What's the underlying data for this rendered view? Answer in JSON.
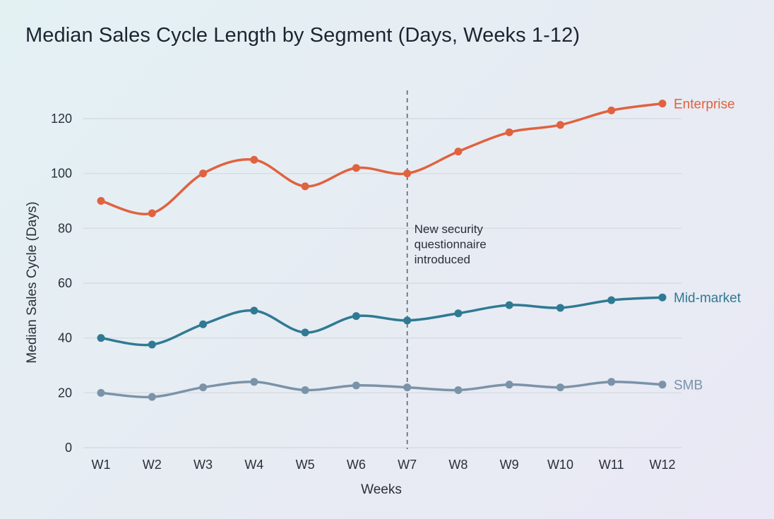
{
  "chart_data": {
    "type": "line",
    "title": "Median Sales Cycle Length by Segment (Days, Weeks 1-12)",
    "xlabel": "Weeks",
    "ylabel": "Median Sales Cycle (Days)",
    "categories": [
      "W1",
      "W2",
      "W3",
      "W4",
      "W5",
      "W6",
      "W7",
      "W8",
      "W9",
      "W10",
      "W11",
      "W12"
    ],
    "ylim": [
      0,
      120
    ],
    "yticks": [
      0,
      20,
      40,
      60,
      80,
      100,
      120
    ],
    "grid": true,
    "legend": "direct labels at line ends",
    "series": [
      {
        "name": "Enterprise",
        "color": "#e0623f",
        "values": [
          90,
          85.5,
          100,
          105,
          95.3,
          102,
          100,
          108,
          115,
          117.7,
          123,
          125.5
        ]
      },
      {
        "name": "Mid-market",
        "color": "#2f7a93",
        "values": [
          40,
          37.6,
          45,
          50,
          42,
          48,
          46.4,
          49,
          52,
          51,
          53.8,
          54.8
        ]
      },
      {
        "name": "SMB",
        "color": "#7b93a8",
        "values": [
          20,
          18.5,
          22,
          24,
          21,
          22.7,
          22,
          21,
          23,
          22,
          24,
          23
        ]
      }
    ],
    "annotations": [
      {
        "x": "W7",
        "style": "dashed vertical line",
        "text": [
          "New security",
          "questionnaire",
          "introduced"
        ]
      }
    ]
  }
}
